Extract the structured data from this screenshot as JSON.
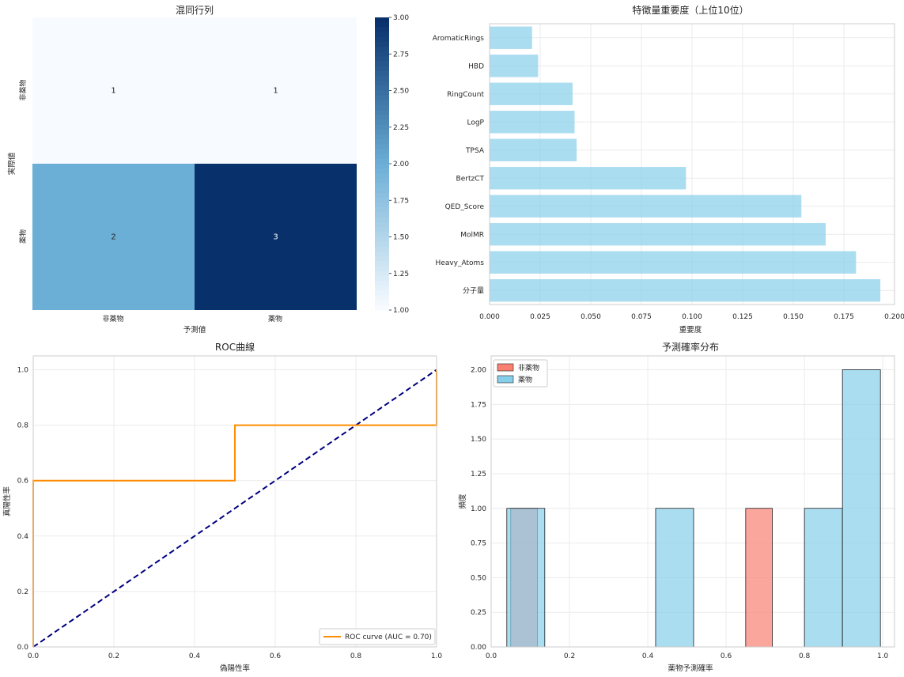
{
  "chart_data": [
    {
      "type": "heatmap",
      "title": "混同行列",
      "xlabel": "予測値",
      "ylabel": "実際値",
      "x_categories": [
        "非薬物",
        "薬物"
      ],
      "y_categories": [
        "非薬物",
        "薬物"
      ],
      "values": [
        [
          1,
          1
        ],
        [
          2,
          3
        ]
      ],
      "colorbar": {
        "min": 1.0,
        "max": 3.0,
        "ticks": [
          "1.00",
          "1.25",
          "1.50",
          "1.75",
          "2.00",
          "2.25",
          "2.50",
          "2.75",
          "3.00"
        ]
      },
      "colors": {
        "low": "#f7fbff",
        "mid": "#6baed6",
        "high": "#08306b"
      }
    },
    {
      "type": "bar",
      "orientation": "horizontal",
      "title": "特徴量重要度（上位10位）",
      "xlabel": "重要度",
      "ylabel": "",
      "categories": [
        "分子量",
        "Heavy_Atoms",
        "MolMR",
        "QED_Score",
        "BertzCT",
        "TPSA",
        "LogP",
        "RingCount",
        "HBD",
        "AromaticRings"
      ],
      "values": [
        0.193,
        0.181,
        0.166,
        0.154,
        0.097,
        0.043,
        0.042,
        0.041,
        0.024,
        0.021
      ],
      "xlim": [
        0,
        0.2
      ],
      "x_ticks": [
        "0.000",
        "0.025",
        "0.050",
        "0.075",
        "0.100",
        "0.125",
        "0.150",
        "0.175",
        "0.200"
      ],
      "color": "#87ceeb",
      "grid": true
    },
    {
      "type": "line",
      "title": "ROC曲線",
      "xlabel": "偽陽性率",
      "ylabel": "真陽性率",
      "xlim": [
        0,
        1
      ],
      "ylim": [
        0,
        1.05
      ],
      "x_ticks": [
        "0.0",
        "0.2",
        "0.4",
        "0.6",
        "0.8",
        "1.0"
      ],
      "y_ticks": [
        "0.0",
        "0.2",
        "0.4",
        "0.6",
        "0.8",
        "1.0"
      ],
      "series": [
        {
          "name": "ROC curve (AUC = 0.70)",
          "color": "#ff8c00",
          "x": [
            0,
            0,
            0.5,
            0.5,
            1,
            1
          ],
          "y": [
            0,
            0.6,
            0.6,
            0.8,
            0.8,
            1.0
          ]
        },
        {
          "color": "#000080",
          "style": "dashed",
          "x": [
            0,
            1
          ],
          "y": [
            0,
            1
          ]
        }
      ],
      "legend": "lower-right",
      "grid": true
    },
    {
      "type": "bar",
      "subtype": "histogram",
      "title": "予測確率分布",
      "xlabel": "薬物予測確率",
      "ylabel": "頻度",
      "xlim": [
        0,
        1.03
      ],
      "ylim": [
        0,
        2.1
      ],
      "x_ticks": [
        "0.0",
        "0.2",
        "0.4",
        "0.6",
        "0.8",
        "1.0"
      ],
      "y_ticks": [
        "0.00",
        "0.25",
        "0.50",
        "0.75",
        "1.00",
        "1.25",
        "1.50",
        "1.75",
        "2.00"
      ],
      "series": [
        {
          "name": "非薬物",
          "color": "#fa8072",
          "bins": [
            [
              0.05,
              0.118,
              1
            ],
            [
              0.65,
              0.718,
              1
            ]
          ]
        },
        {
          "name": "薬物",
          "color": "#87ceeb",
          "bins": [
            [
              0.04,
              0.137,
              1
            ],
            [
              0.42,
              0.517,
              1
            ],
            [
              0.8,
              0.897,
              1
            ],
            [
              0.897,
              0.994,
              2
            ]
          ]
        }
      ],
      "legend": "top-left",
      "grid": true
    }
  ]
}
